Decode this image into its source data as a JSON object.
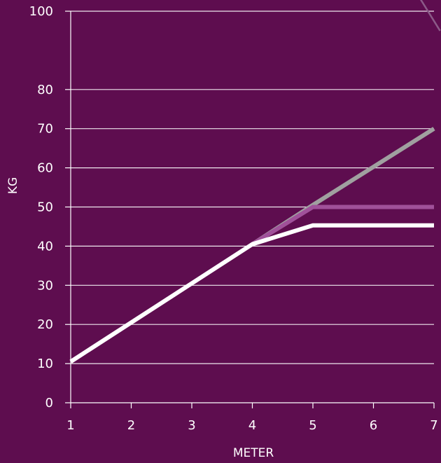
{
  "chart_data": {
    "type": "line",
    "title": "",
    "xlabel": "METER",
    "ylabel": "KG",
    "xlim": [
      1,
      7
    ],
    "ylim": [
      0,
      100
    ],
    "x_ticks": [
      "1",
      "2",
      "3",
      "4",
      "5",
      "6",
      "7"
    ],
    "y_ticks": [
      "0",
      "10",
      "20",
      "30",
      "40",
      "50",
      "60",
      "70",
      "80",
      "100"
    ],
    "y_tick_values": [
      0,
      10,
      20,
      30,
      40,
      50,
      60,
      70,
      80,
      100
    ],
    "grid": true,
    "legend": "none",
    "background": "#5e0d4f",
    "series": [
      {
        "color": "#a0a0a0",
        "points": [
          [
            4,
            40.5
          ],
          [
            5,
            50.5
          ],
          [
            7,
            70
          ]
        ]
      },
      {
        "color": "#a0519a",
        "points": [
          [
            4,
            40.5
          ],
          [
            5,
            50
          ],
          [
            7,
            50
          ]
        ]
      },
      {
        "color": "#ffffff",
        "points": [
          [
            1,
            10.5
          ],
          [
            4,
            40.5
          ],
          [
            5,
            45.3
          ],
          [
            7,
            45.3
          ]
        ]
      }
    ],
    "decoration": {
      "color": "#8b5a88",
      "points": [
        [
          6.7,
          105
        ],
        [
          7.1,
          95
        ]
      ]
    }
  }
}
